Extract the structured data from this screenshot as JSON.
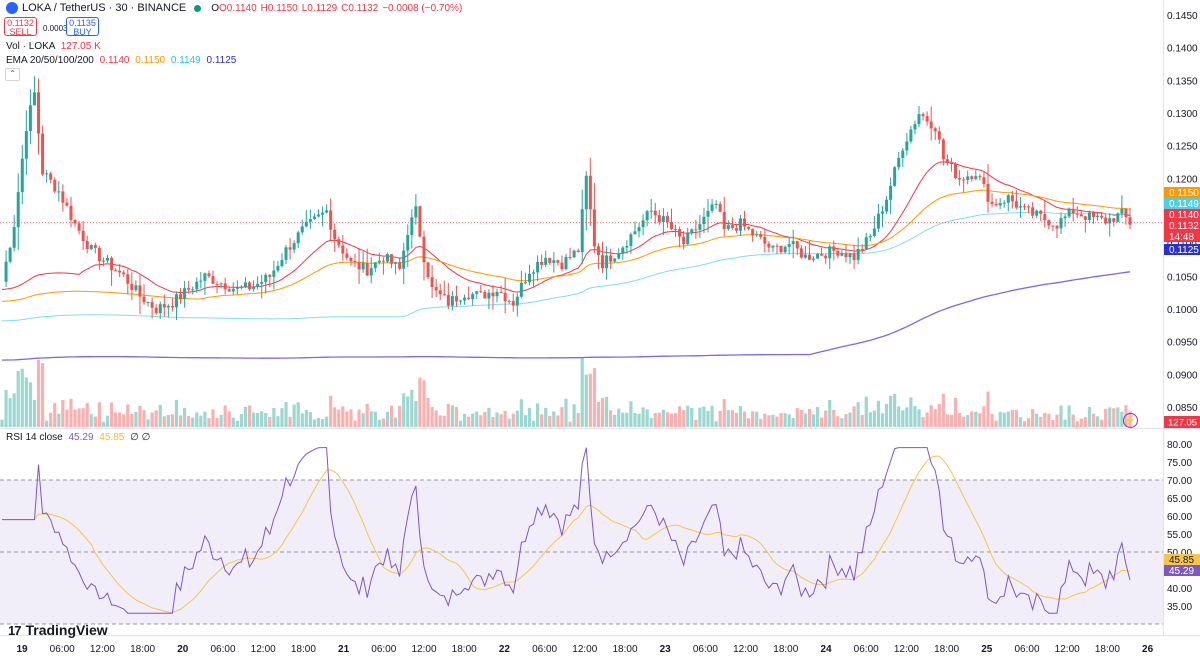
{
  "header": {
    "symbol": "LOKA / TetherUS · 30 · BINANCE",
    "open": "O0.1140",
    "high": "H0.1150",
    "low": "L0.1129",
    "close": "C0.1132",
    "change": "−0.0008 (−0.70%)"
  },
  "trade": {
    "sell_price": "0.1132",
    "sell_label": "SELL",
    "spread": "0.0003",
    "buy_price": "0.1135",
    "buy_label": "BUY"
  },
  "indicators": {
    "volume_label": "Vol · LOKA",
    "volume_value": "127.05 K",
    "ema_label": "EMA 20/50/100/200",
    "ema20": "0.1140",
    "ema50": "0.1150",
    "ema100": "0.1149",
    "ema200": "0.1125",
    "rsi_label": "RSI 14 close",
    "rsi_value": "45.29",
    "rsi_ma": "45.85",
    "rsi_extra": "∅ ∅"
  },
  "branding": {
    "logo_text": "TradingView",
    "logo_mark": "17"
  },
  "chart_data": {
    "type": "candlestick",
    "price_axis": {
      "ticks": [
        "0.1450",
        "0.1400",
        "0.1350",
        "0.1300",
        "0.1250",
        "0.1200",
        "0.1150",
        "0.1100",
        "0.1050",
        "0.1000",
        "0.0950",
        "0.0900",
        "0.0850"
      ]
    },
    "price_labels": [
      {
        "value": "0.1150",
        "role": "ema50",
        "color": "#ff9800"
      },
      {
        "value": "0.1149",
        "role": "ema100",
        "color": "#4dd0e1"
      },
      {
        "value": "0.1140",
        "role": "ema20",
        "color": "#f23645"
      },
      {
        "value": "0.1132",
        "role": "last",
        "color": "#f23645"
      },
      {
        "value": "14:48",
        "role": "countdown",
        "color": "#f23645"
      },
      {
        "value": "0.1125",
        "role": "ema200",
        "color": "#2a2ed6"
      }
    ],
    "volume_label": {
      "value": "127.05 K",
      "color": "#f23645"
    },
    "rsi_axis": {
      "ticks": [
        "80.00",
        "75.00",
        "70.00",
        "65.00",
        "60.00",
        "55.00",
        "50.00",
        "45.00",
        "40.00",
        "35.00"
      ]
    },
    "rsi_labels": [
      {
        "value": "45.85",
        "color": "#f7c548"
      },
      {
        "value": "45.29",
        "color": "#7e57c2"
      }
    ],
    "rsi_levels": [
      70,
      50,
      30
    ],
    "time_axis": [
      "19",
      "06:00",
      "12:00",
      "18:00",
      "20",
      "06:00",
      "12:00",
      "18:00",
      "21",
      "06:00",
      "12:00",
      "18:00",
      "22",
      "06:00",
      "12:00",
      "18:00",
      "23",
      "06:00",
      "12:00",
      "18:00",
      "24",
      "06:00",
      "12:00",
      "18:00",
      "25",
      "06:00",
      "12:00",
      "18:00",
      "26"
    ],
    "anchors": [
      [
        0,
        0.1042
      ],
      [
        3,
        0.113
      ],
      [
        6,
        0.128
      ],
      [
        8,
        0.133
      ],
      [
        10,
        0.121
      ],
      [
        14,
        0.118
      ],
      [
        18,
        0.113
      ],
      [
        22,
        0.109
      ],
      [
        26,
        0.107
      ],
      [
        30,
        0.105
      ],
      [
        34,
        0.102
      ],
      [
        38,
        0.1
      ],
      [
        42,
        0.101
      ],
      [
        46,
        0.103
      ],
      [
        50,
        0.105
      ],
      [
        54,
        0.104
      ],
      [
        58,
        0.103
      ],
      [
        62,
        0.1035
      ],
      [
        66,
        0.105
      ],
      [
        70,
        0.109
      ],
      [
        74,
        0.112
      ],
      [
        78,
        0.114
      ],
      [
        80,
        0.115
      ],
      [
        82,
        0.111
      ],
      [
        86,
        0.107
      ],
      [
        90,
        0.106
      ],
      [
        94,
        0.108
      ],
      [
        98,
        0.106
      ],
      [
        100,
        0.112
      ],
      [
        102,
        0.115
      ],
      [
        104,
        0.108
      ],
      [
        106,
        0.103
      ],
      [
        110,
        0.101
      ],
      [
        114,
        0.1025
      ],
      [
        118,
        0.102
      ],
      [
        122,
        0.103
      ],
      [
        126,
        0.101
      ],
      [
        130,
        0.106
      ],
      [
        134,
        0.108
      ],
      [
        138,
        0.107
      ],
      [
        142,
        0.109
      ],
      [
        144,
        0.12
      ],
      [
        146,
        0.11
      ],
      [
        148,
        0.107
      ],
      [
        152,
        0.109
      ],
      [
        156,
        0.112
      ],
      [
        160,
        0.115
      ],
      [
        164,
        0.113
      ],
      [
        168,
        0.11
      ],
      [
        172,
        0.113
      ],
      [
        176,
        0.116
      ],
      [
        178,
        0.112
      ],
      [
        182,
        0.113
      ],
      [
        186,
        0.111
      ],
      [
        190,
        0.109
      ],
      [
        194,
        0.11
      ],
      [
        198,
        0.108
      ],
      [
        202,
        0.1085
      ],
      [
        206,
        0.109
      ],
      [
        210,
        0.108
      ],
      [
        214,
        0.111
      ],
      [
        218,
        0.117
      ],
      [
        222,
        0.125
      ],
      [
        226,
        0.13
      ],
      [
        230,
        0.128
      ],
      [
        232,
        0.123
      ],
      [
        236,
        0.12
      ],
      [
        240,
        0.121
      ],
      [
        244,
        0.116
      ],
      [
        248,
        0.117
      ],
      [
        252,
        0.115
      ],
      [
        256,
        0.114
      ],
      [
        260,
        0.113
      ],
      [
        264,
        0.115
      ],
      [
        268,
        0.114
      ],
      [
        272,
        0.1135
      ],
      [
        276,
        0.1145
      ],
      [
        278,
        0.1132
      ]
    ]
  }
}
